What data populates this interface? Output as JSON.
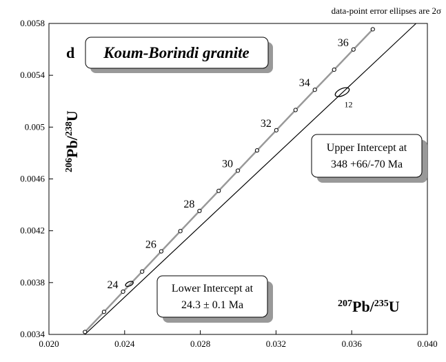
{
  "chart_data": {
    "type": "concordia",
    "panel_label": "d",
    "title": "Koum-Borindi granite",
    "note": "data-point error ellipses are 2σ",
    "y_label": [
      "206",
      "Pb/",
      "238",
      "U"
    ],
    "x_label": [
      "207",
      "Pb/",
      "235",
      "U"
    ],
    "xlim": [
      0.02,
      0.04
    ],
    "ylim": [
      0.0034,
      0.0058
    ],
    "xticks": [
      {
        "value": 0.02,
        "label": "0.020"
      },
      0.024,
      0.028,
      0.032,
      0.036,
      {
        "value": 0.04,
        "label": "0.040"
      }
    ],
    "yticks": [
      0.0034,
      0.0038,
      0.0042,
      0.0046,
      0.005,
      0.0054,
      0.0058
    ],
    "concordia": {
      "color": "#999999",
      "x": [
        0.021904,
        0.02291,
        0.023917,
        0.024925,
        0.025935,
        0.026945,
        0.027957,
        0.02897,
        0.029984,
        0.030999,
        0.032016,
        0.033033,
        0.034052,
        0.035072,
        0.036093,
        0.037115
      ],
      "values": [
        0.003419,
        0.003574,
        0.00373,
        0.003885,
        0.004041,
        0.004197,
        0.004353,
        0.004508,
        0.004664,
        0.00482,
        0.004976,
        0.005132,
        0.005288,
        0.005443,
        0.005599,
        0.005755
      ],
      "age_labels": [
        null,
        null,
        24,
        null,
        26,
        null,
        28,
        null,
        30,
        null,
        32,
        null,
        34,
        null,
        36,
        null
      ]
    },
    "discordia": {
      "color": "#000000",
      "x": [
        0.0219,
        0.0394
      ],
      "values": [
        0.0034,
        0.0058
      ]
    },
    "ellipses": [
      {
        "x": 0.0355,
        "y": 0.00527,
        "label": "12"
      },
      {
        "x": 0.02425,
        "y": 0.00379
      }
    ],
    "upper_intercept": [
      "Upper Intercept at",
      "348 +66/-70  Ma"
    ],
    "lower_intercept": [
      "Lower Intercept at",
      "24.3 ± 0.1 Ma"
    ]
  }
}
